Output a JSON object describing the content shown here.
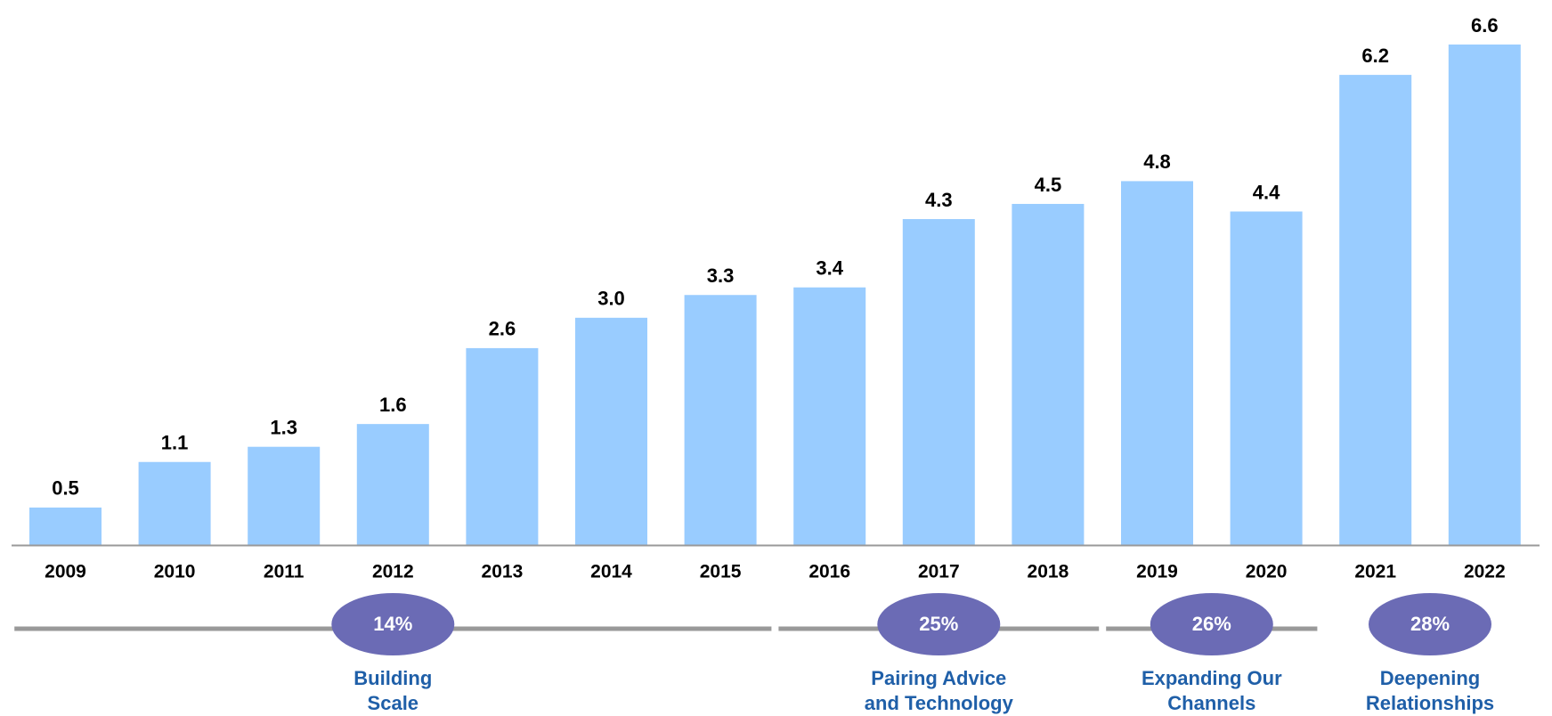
{
  "chart_data": {
    "type": "bar",
    "categories": [
      "2009",
      "2010",
      "2011",
      "2012",
      "2013",
      "2014",
      "2015",
      "2016",
      "2017",
      "2018",
      "2019",
      "2020",
      "2021",
      "2022"
    ],
    "values": [
      0.5,
      1.1,
      1.3,
      1.6,
      2.6,
      3.0,
      3.3,
      3.4,
      4.3,
      4.5,
      4.8,
      4.4,
      6.2,
      6.6
    ],
    "value_labels": [
      "0.5",
      "1.1",
      "1.3",
      "1.6",
      "2.6",
      "3.0",
      "3.3",
      "3.4",
      "4.3",
      "4.5",
      "4.8",
      "4.4",
      "6.2",
      "6.6"
    ],
    "color": "#99ccff",
    "periods": [
      {
        "start": "2009",
        "end": "2015",
        "value": 14,
        "value_label": "14%",
        "lines": [
          "Building",
          "Scale"
        ]
      },
      {
        "start": "2016",
        "end": "2018",
        "value": 25,
        "value_label": "25%",
        "lines": [
          "Pairing Advice",
          "and Technology"
        ]
      },
      {
        "start": "2019",
        "end": "2020",
        "value": 26,
        "value_label": "26%",
        "lines": [
          "Expanding Our",
          "Channels"
        ]
      },
      {
        "start": "2021",
        "end": "2022",
        "value": 28,
        "value_label": "28%",
        "lines": [
          "Deepening",
          "Relationships"
        ]
      }
    ]
  }
}
